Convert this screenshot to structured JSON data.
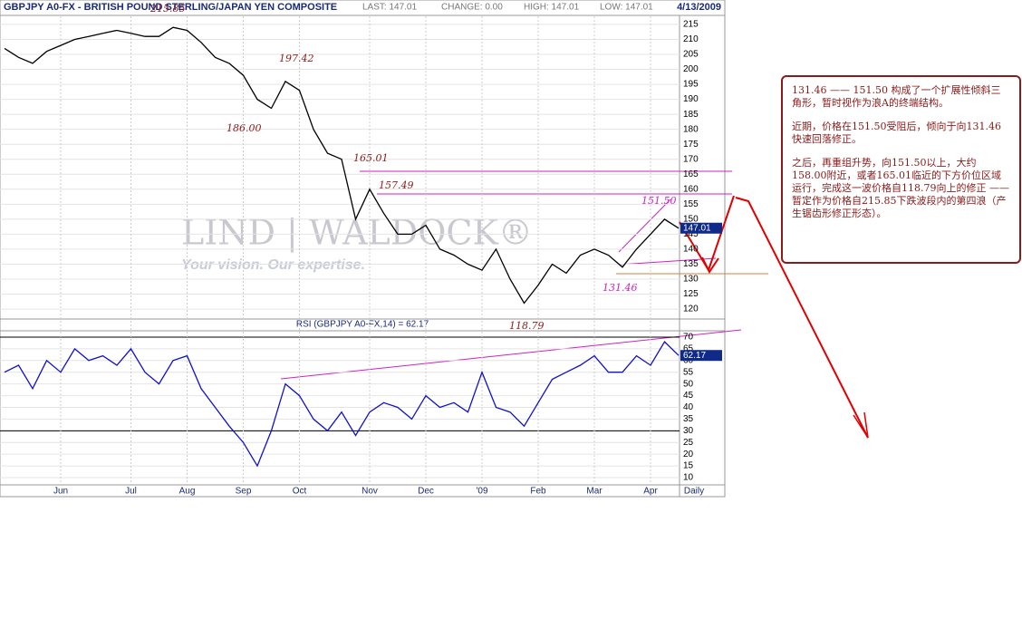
{
  "chart_data": [
    {
      "type": "line",
      "title": "GBPJPY A0-FX - BRITISH POUND STERLING/JAPAN YEN COMPOSITE",
      "stats": [
        "LAST: 147.01",
        "CHANGE: 0.00",
        "HIGH: 147.01",
        "LOW: 147.01"
      ],
      "date": "4/13/2009",
      "period": "Daily",
      "watermark": "LIND | WALDOCK®",
      "tagline": "Your vision. Our expertise.",
      "color": "#000000",
      "categories": [
        null,
        null,
        null,
        null,
        "Jun",
        null,
        null,
        null,
        null,
        "Jul",
        null,
        null,
        null,
        "Aug",
        null,
        null,
        null,
        "Sep",
        null,
        null,
        null,
        "Oct",
        null,
        null,
        null,
        null,
        "Nov",
        null,
        null,
        null,
        "Dec",
        null,
        null,
        null,
        "'09",
        null,
        null,
        null,
        "Feb",
        null,
        null,
        null,
        "Mar",
        null,
        null,
        null,
        "Apr",
        null,
        null
      ],
      "values": [
        207,
        204,
        202,
        206,
        208,
        210,
        211,
        212,
        213,
        212,
        211,
        211,
        214,
        213,
        209,
        204,
        202,
        198,
        190,
        187,
        196,
        193,
        180,
        172,
        170,
        150,
        160,
        152,
        145,
        145,
        148,
        140,
        138,
        135,
        133,
        140,
        130,
        122,
        128,
        135,
        132,
        138,
        140,
        138,
        134,
        140,
        145,
        150,
        147.01
      ],
      "ylim": [
        117.3,
        217.7
      ],
      "yticks": [
        120,
        125,
        130,
        135,
        140,
        145,
        150,
        155,
        160,
        165,
        170,
        175,
        180,
        185,
        190,
        195,
        200,
        205,
        210,
        215
      ],
      "annotations": [
        "215.85",
        "197.42",
        "186.00",
        "165.01",
        "157.49",
        "151.50",
        "131.46",
        "118.79"
      ]
    },
    {
      "type": "line",
      "title": "RSI (GBPJPY A0-FX,14) = 62.17",
      "color": "#1010d0",
      "values": [
        55,
        58,
        48,
        60,
        55,
        65,
        60,
        62,
        58,
        65,
        55,
        50,
        60,
        62,
        48,
        40,
        32,
        25,
        15,
        30,
        50,
        45,
        35,
        30,
        38,
        28,
        38,
        42,
        40,
        35,
        45,
        40,
        42,
        38,
        55,
        40,
        38,
        32,
        42,
        52,
        55,
        58,
        62,
        55,
        55,
        62,
        58,
        68,
        62.17
      ],
      "ylim": [
        6.9,
        72.7
      ],
      "yticks": [
        10,
        15,
        20,
        25,
        30,
        35,
        40,
        45,
        50,
        55,
        60,
        65,
        70
      ],
      "hlines": [
        30,
        70
      ]
    }
  ],
  "note": [
    "131.46 —— 151.50 构成了一个扩展性倾斜三角形，暂时视作为浪A的终端结构。",
    "近期，价格在151.50受阻后，倾向于向131.46快速回落修正。",
    "之后，再重组升势，向151.50以上，大约158.00附近，或者165.01临近的下方价位区域运行，完成这一波价格自118.79向上的修正 —— 暂定作为价格自215.85下跌波段内的第四浪（产生锯齿形修正形态）。"
  ]
}
